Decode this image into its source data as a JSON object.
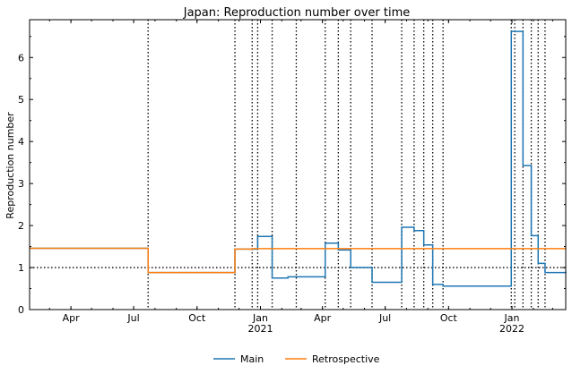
{
  "chart_data": {
    "type": "line",
    "title": "Japan: Reproduction number over time",
    "xlabel": "",
    "ylabel": "Reproduction number",
    "xlim": [
      "2020-02-01",
      "2022-03-20"
    ],
    "ylim": [
      0,
      6.9
    ],
    "x_ticks": [
      {
        "date": "2020-04-01",
        "label": "Apr",
        "sublabel": ""
      },
      {
        "date": "2020-07-01",
        "label": "Jul",
        "sublabel": ""
      },
      {
        "date": "2020-10-01",
        "label": "Oct",
        "sublabel": ""
      },
      {
        "date": "2021-01-01",
        "label": "Jan",
        "sublabel": "2021"
      },
      {
        "date": "2021-04-01",
        "label": "Apr",
        "sublabel": ""
      },
      {
        "date": "2021-07-01",
        "label": "Jul",
        "sublabel": ""
      },
      {
        "date": "2021-10-01",
        "label": "Oct",
        "sublabel": ""
      },
      {
        "date": "2022-01-01",
        "label": "Jan",
        "sublabel": "2022"
      }
    ],
    "y_ticks": [
      "0",
      "1",
      "2",
      "3",
      "4",
      "5",
      "6"
    ],
    "reference_line": 1,
    "grid": false,
    "legend_position": "bottom-center",
    "change_points": [
      "2020-07-22",
      "2020-11-25",
      "2020-12-20",
      "2020-12-28",
      "2021-01-18",
      "2021-02-22",
      "2021-04-05",
      "2021-04-24",
      "2021-05-12",
      "2021-06-12",
      "2021-07-25",
      "2021-08-12",
      "2021-08-26",
      "2021-09-08",
      "2021-09-23",
      "2021-12-31",
      "2022-01-05",
      "2022-01-17",
      "2022-01-29",
      "2022-02-08",
      "2022-02-18"
    ],
    "series": [
      {
        "name": "Main",
        "color": "#1f77b4",
        "points": [
          {
            "x": "2020-02-01",
            "y": 1.46
          },
          {
            "x": "2020-07-22",
            "y": 0.88
          },
          {
            "x": "2020-11-25",
            "y": 1.44
          },
          {
            "x": "2020-12-28",
            "y": 1.74
          },
          {
            "x": "2021-01-18",
            "y": 0.75
          },
          {
            "x": "2021-02-10",
            "y": 0.78
          },
          {
            "x": "2021-04-05",
            "y": 1.58
          },
          {
            "x": "2021-04-24",
            "y": 1.42
          },
          {
            "x": "2021-05-12",
            "y": 1.0
          },
          {
            "x": "2021-06-12",
            "y": 0.65
          },
          {
            "x": "2021-07-25",
            "y": 1.96
          },
          {
            "x": "2021-08-12",
            "y": 1.88
          },
          {
            "x": "2021-08-26",
            "y": 1.54
          },
          {
            "x": "2021-09-08",
            "y": 0.6
          },
          {
            "x": "2021-09-23",
            "y": 0.56
          },
          {
            "x": "2021-12-31",
            "y": 6.62
          },
          {
            "x": "2022-01-17",
            "y": 3.43
          },
          {
            "x": "2022-01-29",
            "y": 1.76
          },
          {
            "x": "2022-02-08",
            "y": 1.1
          },
          {
            "x": "2022-02-18",
            "y": 0.88
          },
          {
            "x": "2022-03-20",
            "y": 0.9
          }
        ]
      },
      {
        "name": "Retrospective",
        "color": "#ff7f0e",
        "points": [
          {
            "x": "2020-02-01",
            "y": 1.46
          },
          {
            "x": "2020-07-22",
            "y": 0.88
          },
          {
            "x": "2020-11-25",
            "y": 1.44
          },
          {
            "x": "2020-12-20",
            "y": 1.45
          },
          {
            "x": "2021-05-12",
            "y": 1.45
          },
          {
            "x": "2022-03-20",
            "y": 1.46
          }
        ]
      }
    ]
  }
}
